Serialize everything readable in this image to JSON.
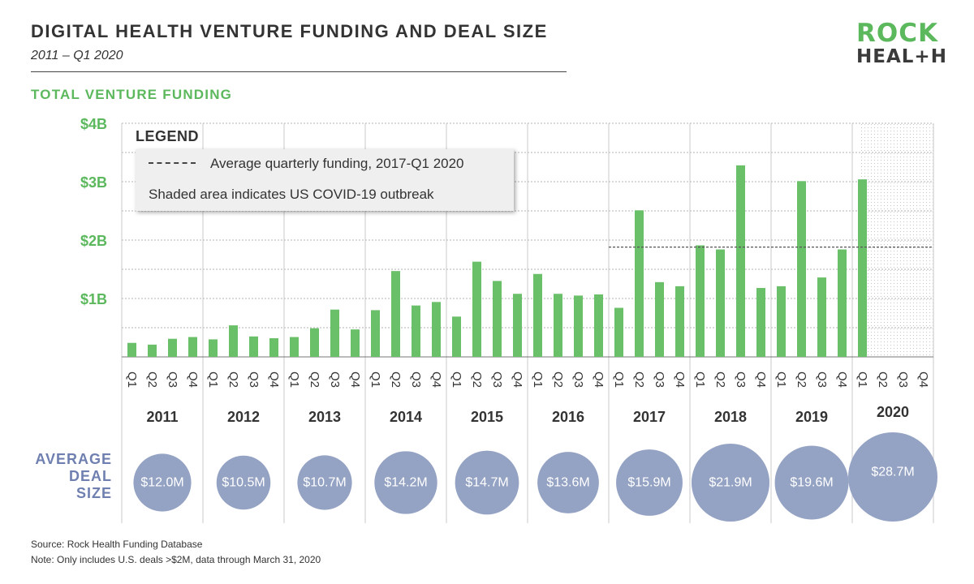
{
  "header": {
    "title": "DIGITAL HEALTH VENTURE FUNDING AND DEAL SIZE",
    "subtitle": "2011 – Q1 2020",
    "section_title": "TOTAL VENTURE FUNDING"
  },
  "logo": {
    "line1": "ROCK",
    "line2": "HEAL+H"
  },
  "legend": {
    "heading": "LEGEND",
    "average_label": "Average quarterly funding, 2017-Q1 2020",
    "shaded_label": "Shaded area indicates US COVID-19 outbreak"
  },
  "deal_size_heading": [
    "AVERAGE",
    "DEAL",
    "SIZE"
  ],
  "footer": {
    "source": "Source: Rock Health Funding Database",
    "note": "Note: Only includes U.S. deals >$2M, data through March 31, 2020"
  },
  "colors": {
    "bar": "#6abf69",
    "bubble": "#94a2c4",
    "accent_green": "#5cb85c",
    "deal_heading": "#6e7fb0"
  },
  "chart_data": [
    {
      "type": "bar",
      "title": "TOTAL VENTURE FUNDING",
      "unit": "billions USD",
      "ylim": [
        0,
        4
      ],
      "y_ticks": [
        1,
        2,
        3,
        4
      ],
      "y_tick_labels": [
        "$1B",
        "$2B",
        "$3B",
        "$4B"
      ],
      "years": [
        "2011",
        "2012",
        "2013",
        "2014",
        "2015",
        "2016",
        "2017",
        "2018",
        "2019",
        "2020"
      ],
      "quarters": [
        "Q1",
        "Q2",
        "Q3",
        "Q4"
      ],
      "values": [
        [
          0.24,
          0.21,
          0.31,
          0.34
        ],
        [
          0.3,
          0.54,
          0.35,
          0.32
        ],
        [
          0.34,
          0.49,
          0.81,
          0.47
        ],
        [
          0.8,
          1.47,
          0.88,
          0.94
        ],
        [
          0.69,
          1.63,
          1.3,
          1.08
        ],
        [
          1.42,
          1.08,
          1.05,
          1.07
        ],
        [
          0.84,
          2.51,
          1.28,
          1.21
        ],
        [
          1.91,
          1.84,
          3.28,
          1.18
        ],
        [
          1.21,
          3.01,
          1.36,
          1.84
        ],
        [
          3.04,
          null,
          null,
          null
        ]
      ],
      "average_line": {
        "label": "Average quarterly funding, 2017-Q1 2020",
        "value": 1.88
      },
      "shaded_region": {
        "label": "Shaded area indicates US COVID-19 outbreak",
        "year": "2020"
      },
      "grid": true,
      "legend_position": "top-left"
    },
    {
      "type": "bubble",
      "title": "AVERAGE DEAL SIZE",
      "categories": [
        "2011",
        "2012",
        "2013",
        "2014",
        "2015",
        "2016",
        "2017",
        "2018",
        "2019",
        "2020"
      ],
      "values": [
        12.0,
        10.5,
        10.7,
        14.2,
        14.7,
        13.6,
        15.9,
        21.9,
        19.6,
        28.7
      ],
      "labels": [
        "$12.0M",
        "$10.5M",
        "$10.7M",
        "$14.2M",
        "$14.7M",
        "$13.6M",
        "$15.9M",
        "$21.9M",
        "$19.6M",
        "$28.7M"
      ]
    }
  ]
}
